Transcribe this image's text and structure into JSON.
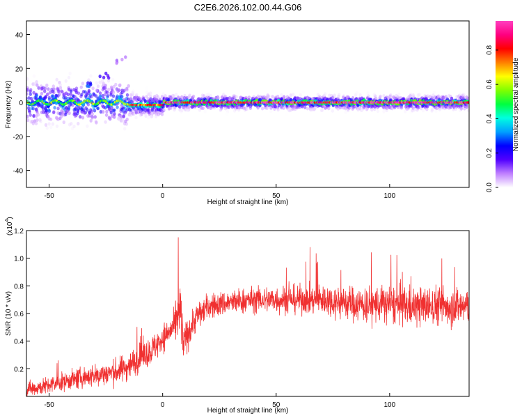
{
  "title": "C2E6.2026.102.00.44.G06",
  "chart_data": [
    {
      "type": "heatmap",
      "xlabel": "Height of straight line (km)",
      "ylabel": "Frequency (Hz)",
      "xlim": [
        -60,
        135
      ],
      "ylim": [
        -50,
        48
      ],
      "xticks": [
        -50,
        0,
        50,
        100
      ],
      "yticks": [
        40,
        20,
        0,
        -20,
        -40
      ],
      "colorbar": {
        "label": "Normalized spectral amplitude",
        "range": [
          0,
          0.97
        ],
        "ticks": [
          "0.0",
          "0.2",
          "0.4",
          "0.6",
          "0.8"
        ],
        "colors": [
          "#ffffff",
          "#c080ff",
          "#5000ff",
          "#0000ff",
          "#00a0ff",
          "#00ffe0",
          "#00ff40",
          "#80ff00",
          "#ffff00",
          "#ff8000",
          "#ff0000",
          "#ff0080",
          "#ff40c0"
        ]
      },
      "ridge": {
        "frequency_hz": 0,
        "segments": [
          {
            "x": [
              -60,
              -15
            ],
            "f0": 0,
            "spread_hz": 3,
            "peak_amp": 0.55
          },
          {
            "x": [
              -15,
              0
            ],
            "f0": -1.5,
            "spread_hz": 1.5,
            "peak_amp": 0.75
          },
          {
            "x": [
              0,
              135
            ],
            "f0": 0,
            "spread_hz": 1,
            "peak_amp": 0.9
          }
        ]
      },
      "features": [
        {
          "x": -32,
          "y": 11,
          "amp": 0.25
        },
        {
          "x": -25,
          "y": 15,
          "amp": 0.2
        },
        {
          "x": -18,
          "y": 25,
          "amp": 0.1
        }
      ]
    },
    {
      "type": "line",
      "xlabel": "Height of straight line (km)",
      "ylabel": "SNR (10 * v/v)",
      "scale_label": "(x10",
      "scale_exp": "4",
      "xlim": [
        -60,
        135
      ],
      "ylim": [
        0,
        1.2
      ],
      "xticks": [
        -50,
        0,
        50,
        100
      ],
      "yticks": [
        "0.2",
        "0.4",
        "0.6",
        "0.8",
        "1.0",
        "1.2"
      ],
      "series": [
        {
          "color": "#f03030",
          "x": [
            -60,
            -50,
            -40,
            -30,
            -20,
            -15,
            -10,
            -5,
            0,
            5,
            8,
            9,
            10,
            15,
            20,
            30,
            40,
            50,
            60,
            70,
            80,
            90,
            100,
            110,
            120,
            135
          ],
          "values": [
            0.05,
            0.08,
            0.12,
            0.15,
            0.18,
            0.22,
            0.28,
            0.33,
            0.42,
            0.5,
            0.62,
            0.35,
            0.42,
            0.58,
            0.65,
            0.68,
            0.7,
            0.7,
            0.7,
            0.7,
            0.68,
            0.66,
            0.67,
            0.65,
            0.66,
            0.65
          ],
          "spread": [
            0.06,
            0.06,
            0.07,
            0.08,
            0.09,
            0.1,
            0.1,
            0.1,
            0.1,
            0.1,
            0.25,
            0.15,
            0.12,
            0.1,
            0.09,
            0.09,
            0.09,
            0.1,
            0.1,
            0.11,
            0.12,
            0.13,
            0.14,
            0.14,
            0.14,
            0.14
          ]
        }
      ]
    }
  ]
}
